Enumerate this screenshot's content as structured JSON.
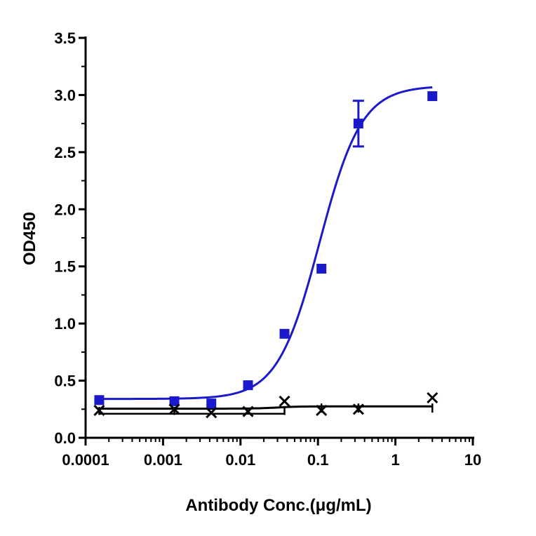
{
  "chart_data": {
    "type": "scatter",
    "xlabel": "Antibody Conc.(μg/mL)",
    "ylabel": "OD450",
    "x_scale": "log",
    "xlim": [
      0.0001,
      10
    ],
    "ylim": [
      0,
      3.5
    ],
    "x_tick_labels": [
      "0.0001",
      "0.001",
      "0.01",
      "0.1",
      "1",
      "10"
    ],
    "y_tick_labels": [
      "0.0",
      "0.5",
      "1.0",
      "1.5",
      "2.0",
      "2.5",
      "3.0",
      "3.5"
    ],
    "grid": false,
    "series": [
      {
        "marker": "square",
        "color": "#1a1acc",
        "fit": "sigmoid",
        "x": [
          0.00015,
          0.0014,
          0.0042,
          0.0125,
          0.037,
          0.111,
          0.333,
          3.0
        ],
        "y": [
          0.33,
          0.32,
          0.3,
          0.46,
          0.91,
          1.48,
          2.75,
          2.99
        ],
        "error": [
          0,
          0,
          0,
          0,
          0,
          0,
          0.2,
          0
        ]
      },
      {
        "marker": "x",
        "color": "#000000",
        "fit": "flat",
        "x": [
          0.00015,
          0.0014,
          0.0042,
          0.0125,
          0.037,
          0.111,
          0.333,
          3.0
        ],
        "y": [
          0.24,
          0.25,
          0.22,
          0.23,
          0.32,
          0.24,
          0.25,
          0.35
        ],
        "error": [
          0,
          0,
          0,
          0,
          0,
          0,
          0,
          0
        ]
      }
    ]
  }
}
